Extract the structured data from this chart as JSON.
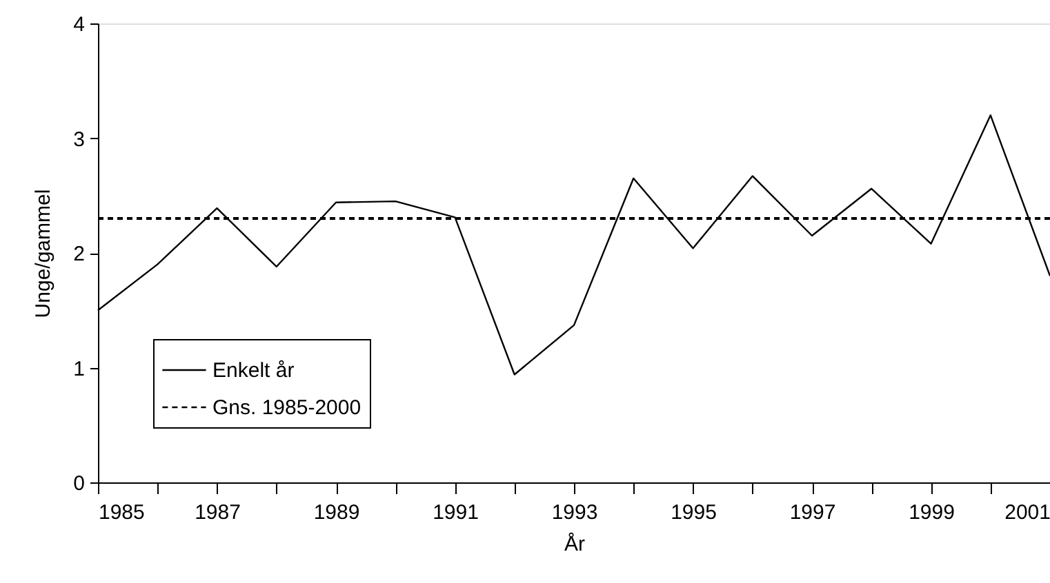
{
  "chart_data": {
    "type": "line",
    "xlabel": "År",
    "ylabel": "Unge/gammel",
    "x": [
      1985,
      1986,
      1987,
      1988,
      1989,
      1990,
      1991,
      1992,
      1993,
      1994,
      1995,
      1996,
      1997,
      1998,
      1999,
      2000,
      2001
    ],
    "series": [
      {
        "name": "Enkelt år",
        "color": "#000000",
        "line_style": "solid",
        "values": [
          1.5,
          1.9,
          2.39,
          1.88,
          2.44,
          2.45,
          2.31,
          0.94,
          1.37,
          2.65,
          2.04,
          2.67,
          2.15,
          2.56,
          2.08,
          3.2,
          1.8
        ]
      }
    ],
    "ref_lines": [
      {
        "axis": "y",
        "value": 2.3,
        "label": "Gns. 1985-2000",
        "color": "#000000",
        "line_style": "dashed"
      }
    ],
    "xlim": [
      1985,
      2001
    ],
    "xticks": [
      1985,
      {
        "value": 1986,
        "label": null
      },
      1987,
      {
        "value": 1988,
        "label": null
      },
      1989,
      {
        "value": 1990,
        "label": null
      },
      1991,
      {
        "value": 1992,
        "label": null
      },
      1993,
      {
        "value": 1994,
        "label": null
      },
      1995,
      {
        "value": 1996,
        "label": null
      },
      1997,
      {
        "value": 1998,
        "label": null
      },
      1999,
      {
        "value": 2000,
        "label": null
      },
      2001
    ],
    "ylim": [
      0,
      4
    ],
    "yticks": [
      0,
      1,
      2,
      3,
      4
    ],
    "grid": false,
    "legend": "bottom left",
    "marker": "none"
  }
}
